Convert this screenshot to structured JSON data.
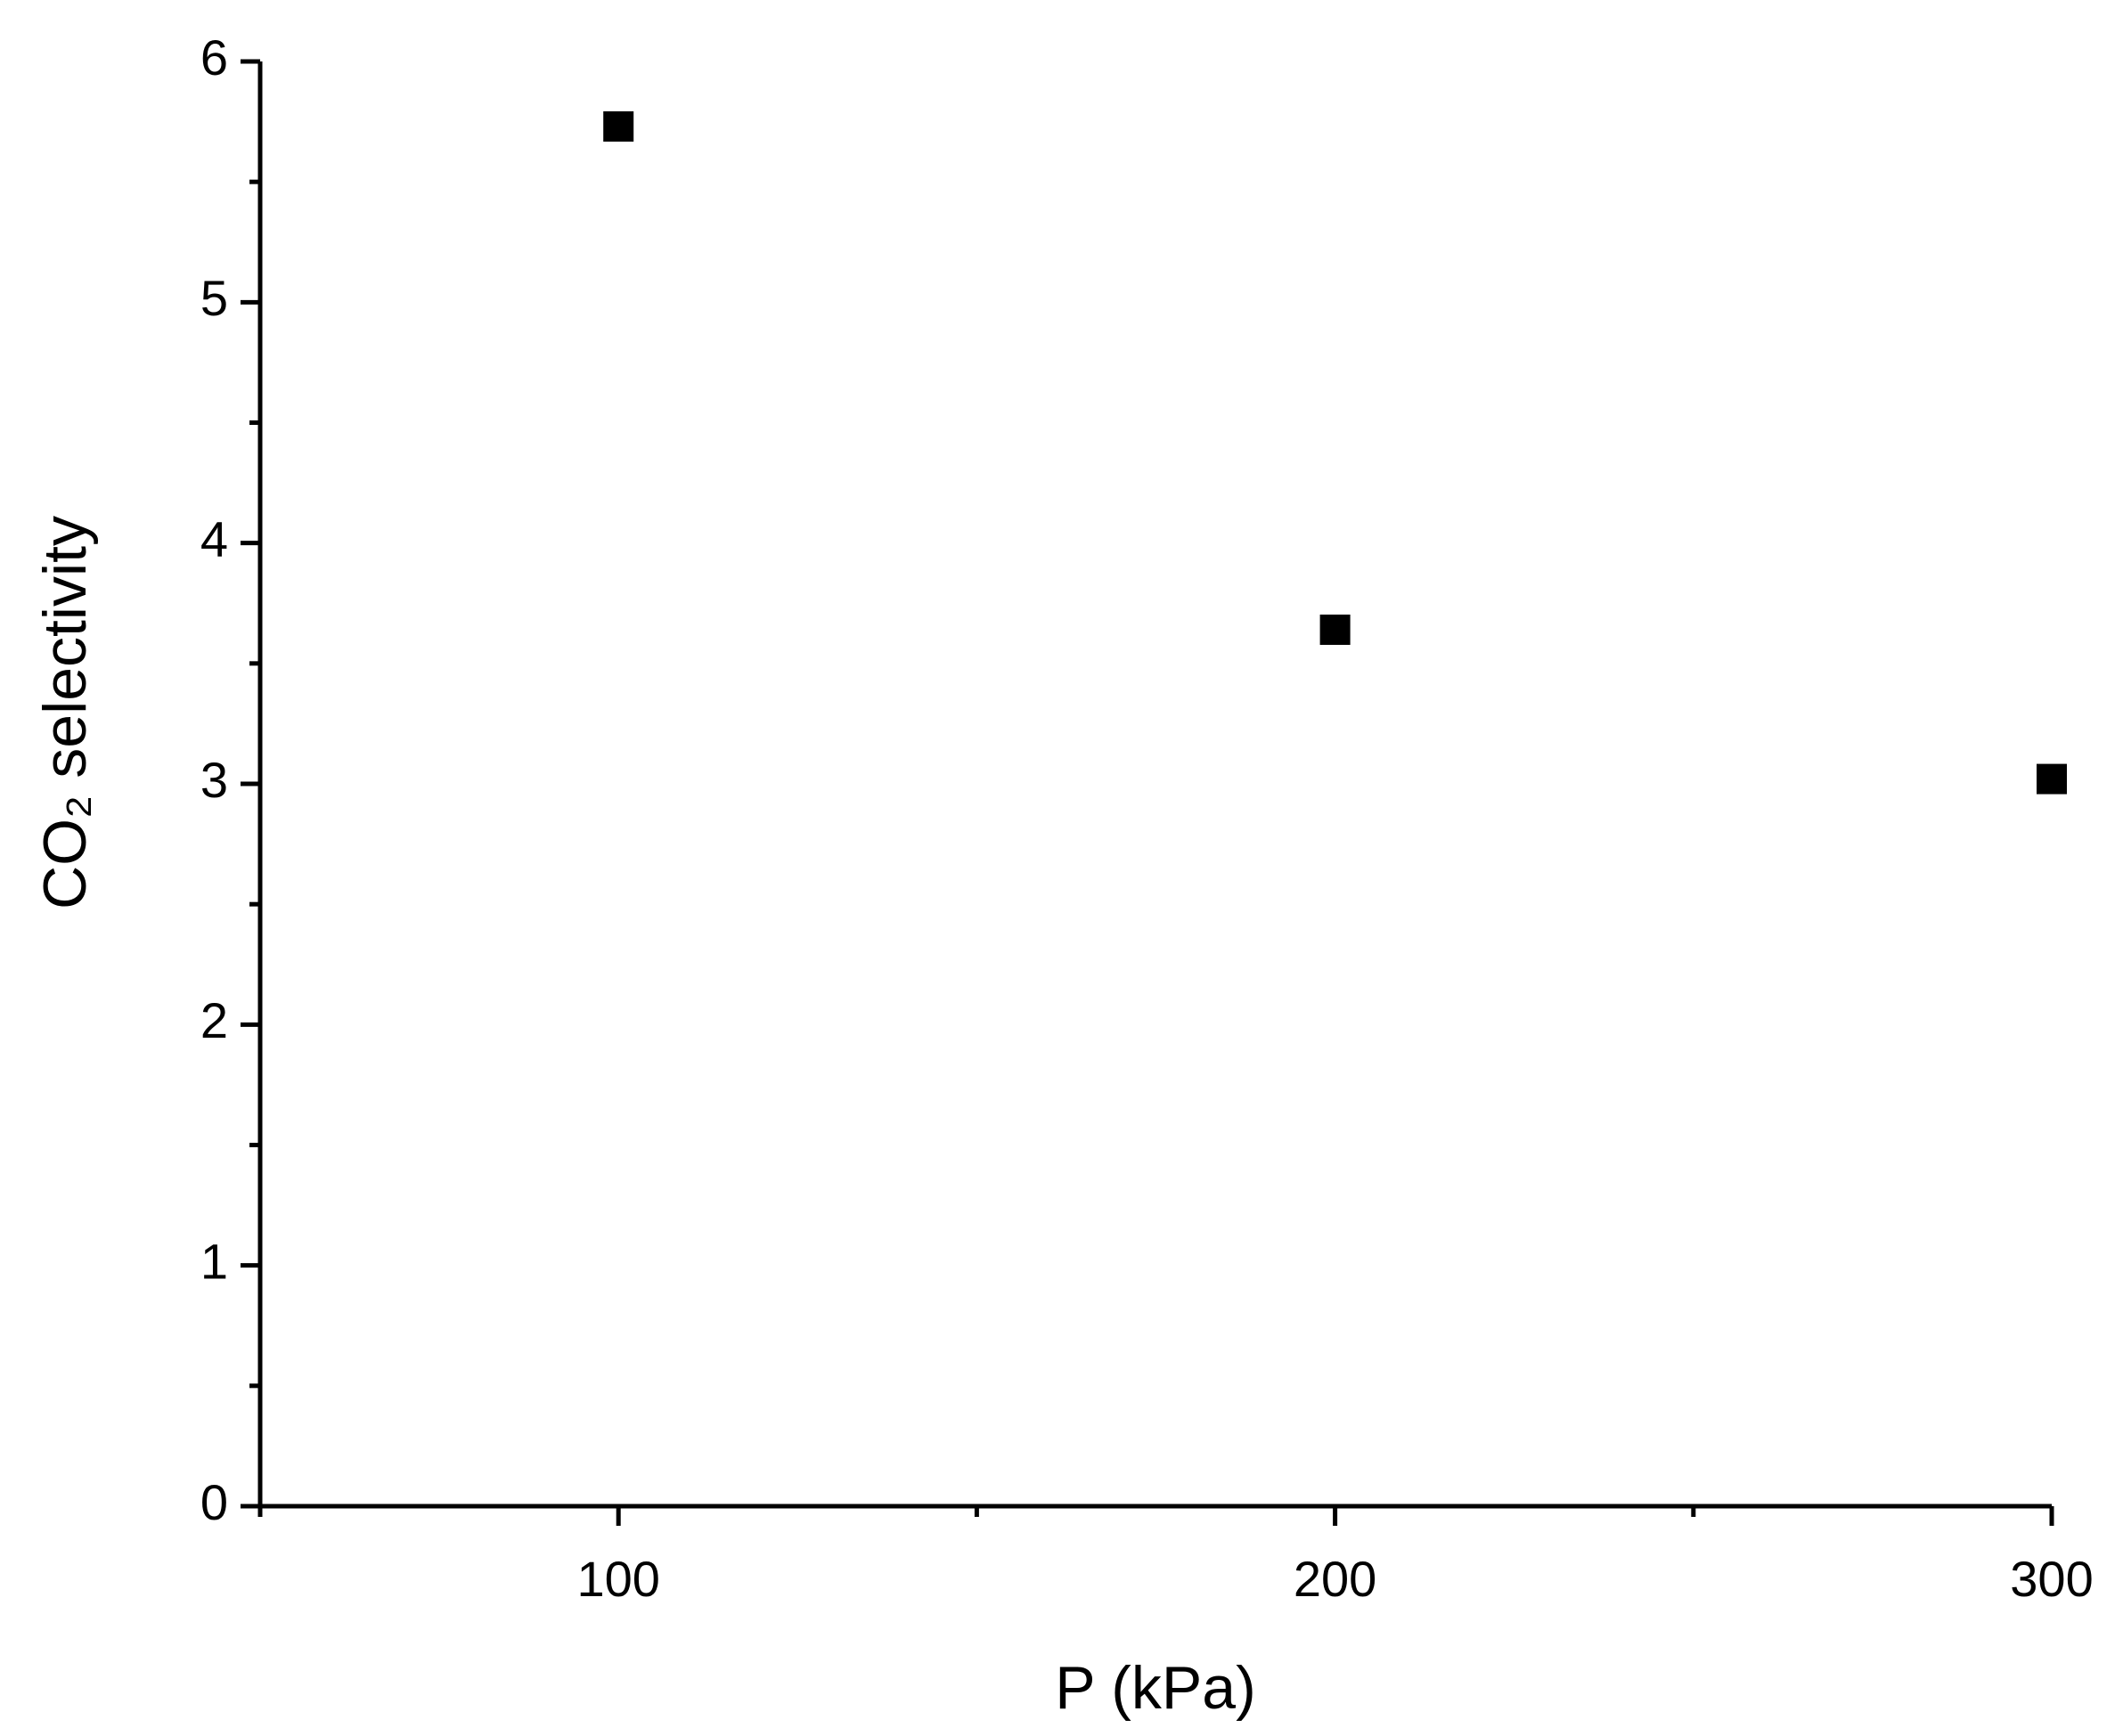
{
  "chart_data": {
    "type": "scatter",
    "xlabel": "P (kPa)",
    "ylabel": "CO₂ selectivity",
    "x": [
      100,
      200,
      300
    ],
    "series": [
      {
        "color": "#000000",
        "values": [
          5.73,
          3.64,
          3.02
        ]
      }
    ],
    "xlim": [
      50,
      300
    ],
    "xticks": [
      100,
      200,
      300
    ],
    "xminorticks": [
      50,
      150,
      250
    ],
    "ylim": [
      0,
      6
    ],
    "yticks": [
      0,
      1,
      2,
      3,
      4,
      5,
      6
    ],
    "yminorticks": [
      0.5,
      1.5,
      2.5,
      3.5,
      4.5,
      5.5
    ],
    "grid": false
  }
}
